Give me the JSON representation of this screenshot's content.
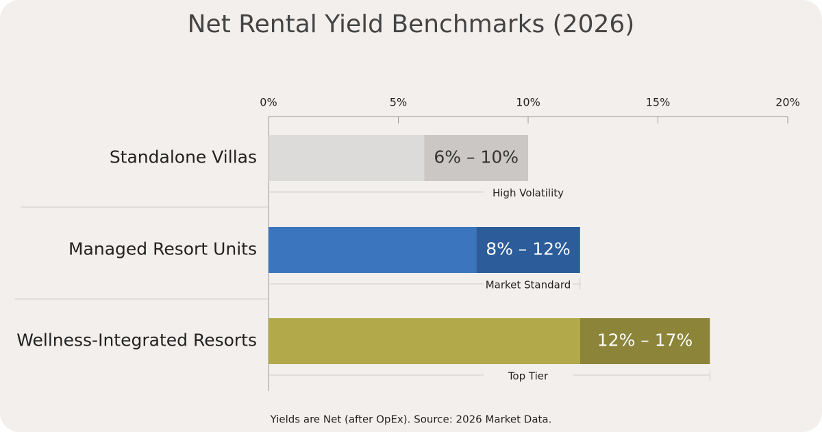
{
  "chart_data": {
    "type": "range-bar",
    "title": "Net Rental Yield Benchmarks (2026)",
    "categories": [
      "Standalone Villas",
      "Managed Resort Units",
      "Wellness-Integrated Resorts"
    ],
    "low": [
      6,
      8,
      12
    ],
    "high": [
      10,
      12,
      17
    ],
    "value_labels": [
      "6% – 10%",
      "8% – 12%",
      "12% – 17%"
    ],
    "annotations": [
      "High Volatility",
      "Market Standard",
      "Top Tier"
    ],
    "colors": [
      {
        "base": "#dcdbda",
        "range": "#cac7c4",
        "label": "#333333"
      },
      {
        "base": "#3b75be",
        "range": "#2c5c9a",
        "label": "#ffffff"
      },
      {
        "base": "#b2a94b",
        "range": "#8b8439",
        "label": "#ffffff"
      }
    ],
    "xlim": [
      0,
      20
    ],
    "xticks": [
      {
        "value": 0,
        "label": "0%"
      },
      {
        "value": 5,
        "label": "5%"
      },
      {
        "value": 10,
        "label": "10%"
      },
      {
        "value": 15,
        "label": "15%"
      },
      {
        "value": 20,
        "label": "20%"
      }
    ],
    "note": "Yields are Net (after OpEx). Source: 2026 Market Data."
  }
}
